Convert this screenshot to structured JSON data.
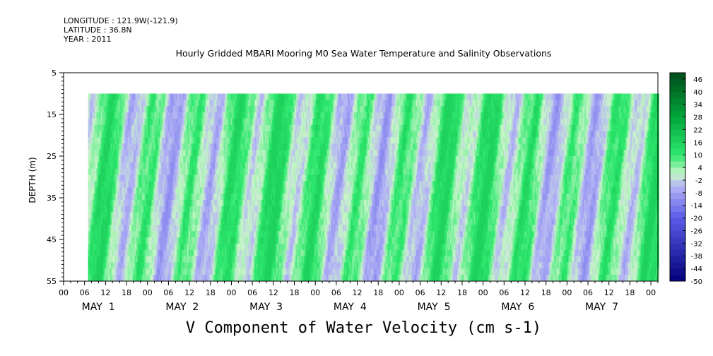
{
  "header": {
    "longitude": "LONGITUDE : 121.9W(-121.9)",
    "latitude": "LATITUDE : 36.8N",
    "year": "YEAR : 2011"
  },
  "chart_data": {
    "type": "heatmap",
    "title": "Hourly Gridded MBARI Mooring M0 Sea Water Temperature and Salinity Observations",
    "xlabel": "V Component of Water Velocity (cm s-1)",
    "ylabel": "DEPTH (m)",
    "y_range": [
      5,
      55
    ],
    "y_inverted": true,
    "y_ticks": [
      5,
      15,
      25,
      35,
      45,
      55
    ],
    "data_depth_range": [
      10,
      55
    ],
    "x_hour_ticks": [
      "00",
      "06",
      "12",
      "18",
      "00",
      "06",
      "12",
      "18",
      "00",
      "06",
      "12",
      "18",
      "00",
      "06",
      "12",
      "18",
      "00",
      "06",
      "12",
      "18",
      "00",
      "06",
      "12",
      "18",
      "00",
      "06",
      "12",
      "18",
      "00"
    ],
    "x_day_labels": [
      "MAY  1",
      "MAY  2",
      "MAY  3",
      "MAY  4",
      "MAY  5",
      "MAY  6",
      "MAY  7"
    ],
    "x_range_hours": [
      0,
      170
    ],
    "data_start_hour": 7,
    "colorbar_labels": [
      "46",
      "40",
      "34",
      "28",
      "22",
      "16",
      "10",
      "4",
      "-2",
      "-8",
      "-14",
      "-20",
      "-26",
      "-32",
      "-38",
      "-44",
      "-50"
    ],
    "colorbar_range": [
      -50,
      49
    ],
    "colorscale": [
      {
        "value": 49,
        "color": "#004d1a"
      },
      {
        "value": 28,
        "color": "#00a63a"
      },
      {
        "value": 10,
        "color": "#2ee86e"
      },
      {
        "value": 1,
        "color": "#c8f5c8"
      },
      {
        "value": -5,
        "color": "#b4b4f5"
      },
      {
        "value": -20,
        "color": "#5a5ae8"
      },
      {
        "value": -50,
        "color": "#00007a"
      }
    ],
    "typical_value_range": [
      -12,
      16
    ]
  }
}
